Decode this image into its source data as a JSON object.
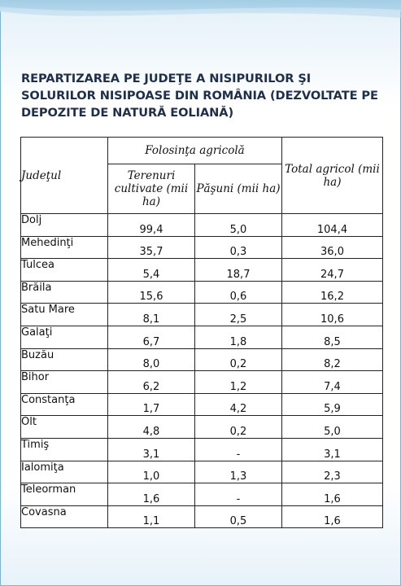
{
  "title": "REPARTIZAREA PE JUDEŢE A NISIPURILOR ŞI SOLURILOR NISIPOASE DIN ROMÂNIA (DEZVOLTATE PE DEPOZITE DE NATURĂ EOLIANĂ)",
  "table": {
    "header_judet": "Judeţul",
    "header_group": "Folosinţa agricolă",
    "header_terenuri": "Terenuri cultivate (mii ha)",
    "header_pasuni": "Păşuni (mii ha)",
    "header_total": "Total agricol (mii ha)",
    "rows": [
      {
        "judet": "Dolj",
        "terenuri": "99,4",
        "pasuni": "5,0",
        "total": "104,4"
      },
      {
        "judet": "Mehedinţi",
        "terenuri": "35,7",
        "pasuni": "0,3",
        "total": "36,0"
      },
      {
        "judet": "Tulcea",
        "terenuri": "5,4",
        "pasuni": "18,7",
        "total": "24,7"
      },
      {
        "judet": "Brăila",
        "terenuri": "15,6",
        "pasuni": "0,6",
        "total": "16,2"
      },
      {
        "judet": "Satu Mare",
        "terenuri": "8,1",
        "pasuni": "2,5",
        "total": "10,6"
      },
      {
        "judet": "Galaţi",
        "terenuri": "6,7",
        "pasuni": "1,8",
        "total": "8,5"
      },
      {
        "judet": "Buzău",
        "terenuri": "8,0",
        "pasuni": "0,2",
        "total": "8,2"
      },
      {
        "judet": "Bihor",
        "terenuri": "6,2",
        "pasuni": "1,2",
        "total": "7,4"
      },
      {
        "judet": "Constanţa",
        "terenuri": "1,7",
        "pasuni": "4,2",
        "total": "5,9"
      },
      {
        "judet": "Olt",
        "terenuri": "4,8",
        "pasuni": "0,2",
        "total": "5,0"
      },
      {
        "judet": "Timiş",
        "terenuri": "3,1",
        "pasuni": "-",
        "total": "3,1"
      },
      {
        "judet": "Ialomiţa",
        "terenuri": "1,0",
        "pasuni": "1,3",
        "total": "2,3"
      },
      {
        "judet": "Teleorman",
        "terenuri": "1,6",
        "pasuni": "-",
        "total": "1,6"
      },
      {
        "judet": "Covasna",
        "terenuri": "1,1",
        "pasuni": "0,5",
        "total": "1,6"
      }
    ]
  },
  "colors": {
    "title": "#1f2f4a",
    "frame_border": "#7fb2cf",
    "background_tint": "#e3f0f8"
  }
}
